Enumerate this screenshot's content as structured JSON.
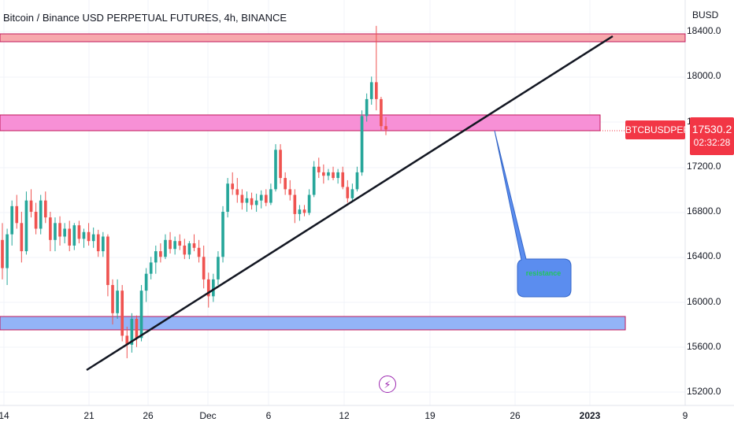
{
  "header": {
    "title": "Bitcoin / Binance USD PERPETUAL FUTURES, 4h, BINANCE",
    "currency": "BUSD"
  },
  "price_tag": {
    "symbol": "BTCBUSDPERP",
    "price": "17530.2",
    "countdown": "02:32:28",
    "color": "#f23645"
  },
  "annotations": {
    "callout_text": "resistance",
    "callout_color": "#5b8def",
    "zone_colors": {
      "top": "#f7a8ad",
      "middle": "#f790d6",
      "bottom": "#93b4f7",
      "border": "#c2185b"
    }
  },
  "icons": {
    "bolt": "⚡"
  },
  "chart_data": {
    "type": "candlestick",
    "title": "Bitcoin / Binance USD PERPETUAL FUTURES, 4h, BINANCE",
    "ylabel": "BUSD",
    "ylim": [
      15200,
      18400
    ],
    "y_ticks": [
      "18400.0",
      "18000.0",
      "17600.0",
      "17200.0",
      "16800.0",
      "16400.0",
      "16000.0",
      "15600.0",
      "15200.0"
    ],
    "x_ticks": [
      "14",
      "21",
      "26",
      "Dec",
      "6",
      "12",
      "19",
      "26",
      "2023",
      "9"
    ],
    "up_color": "#26a69a",
    "down_color": "#ef5350",
    "candles": [
      {
        "o": 16550,
        "h": 16700,
        "l": 16200,
        "c": 16300
      },
      {
        "o": 16300,
        "h": 16650,
        "l": 16150,
        "c": 16600
      },
      {
        "o": 16600,
        "h": 16900,
        "l": 16500,
        "c": 16850
      },
      {
        "o": 16850,
        "h": 16950,
        "l": 16650,
        "c": 16700
      },
      {
        "o": 16700,
        "h": 16800,
        "l": 16350,
        "c": 16450
      },
      {
        "o": 16450,
        "h": 16980,
        "l": 16420,
        "c": 16900
      },
      {
        "o": 16900,
        "h": 17000,
        "l": 16750,
        "c": 16800
      },
      {
        "o": 16800,
        "h": 16880,
        "l": 16600,
        "c": 16650
      },
      {
        "o": 16650,
        "h": 16950,
        "l": 16600,
        "c": 16900
      },
      {
        "o": 16900,
        "h": 16980,
        "l": 16700,
        "c": 16750
      },
      {
        "o": 16750,
        "h": 16800,
        "l": 16450,
        "c": 16550
      },
      {
        "o": 16550,
        "h": 16750,
        "l": 16450,
        "c": 16700
      },
      {
        "o": 16700,
        "h": 16760,
        "l": 16500,
        "c": 16580
      },
      {
        "o": 16580,
        "h": 16700,
        "l": 16520,
        "c": 16650
      },
      {
        "o": 16650,
        "h": 16720,
        "l": 16450,
        "c": 16500
      },
      {
        "o": 16500,
        "h": 16700,
        "l": 16460,
        "c": 16680
      },
      {
        "o": 16680,
        "h": 16720,
        "l": 16520,
        "c": 16560
      },
      {
        "o": 16560,
        "h": 16650,
        "l": 16480,
        "c": 16620
      },
      {
        "o": 16620,
        "h": 16700,
        "l": 16500,
        "c": 16540
      },
      {
        "o": 16540,
        "h": 16660,
        "l": 16480,
        "c": 16600
      },
      {
        "o": 16600,
        "h": 16640,
        "l": 16400,
        "c": 16450
      },
      {
        "o": 16450,
        "h": 16620,
        "l": 16400,
        "c": 16580
      },
      {
        "o": 16580,
        "h": 16600,
        "l": 16050,
        "c": 16150
      },
      {
        "o": 16150,
        "h": 16200,
        "l": 15800,
        "c": 15900
      },
      {
        "o": 15900,
        "h": 16200,
        "l": 15850,
        "c": 16100
      },
      {
        "o": 16100,
        "h": 16150,
        "l": 15650,
        "c": 15700
      },
      {
        "o": 15700,
        "h": 15780,
        "l": 15500,
        "c": 15620
      },
      {
        "o": 15620,
        "h": 15900,
        "l": 15550,
        "c": 15850
      },
      {
        "o": 15850,
        "h": 15880,
        "l": 15600,
        "c": 15680
      },
      {
        "o": 15680,
        "h": 16150,
        "l": 15650,
        "c": 16100
      },
      {
        "o": 16100,
        "h": 16300,
        "l": 16000,
        "c": 16250
      },
      {
        "o": 16250,
        "h": 16400,
        "l": 16200,
        "c": 16350
      },
      {
        "o": 16350,
        "h": 16500,
        "l": 16250,
        "c": 16450
      },
      {
        "o": 16450,
        "h": 16520,
        "l": 16350,
        "c": 16400
      },
      {
        "o": 16400,
        "h": 16600,
        "l": 16380,
        "c": 16550
      },
      {
        "o": 16550,
        "h": 16620,
        "l": 16430,
        "c": 16470
      },
      {
        "o": 16470,
        "h": 16580,
        "l": 16420,
        "c": 16540
      },
      {
        "o": 16540,
        "h": 16600,
        "l": 16460,
        "c": 16500
      },
      {
        "o": 16500,
        "h": 16560,
        "l": 16380,
        "c": 16420
      },
      {
        "o": 16420,
        "h": 16540,
        "l": 16380,
        "c": 16520
      },
      {
        "o": 16520,
        "h": 16600,
        "l": 16450,
        "c": 16480
      },
      {
        "o": 16480,
        "h": 16550,
        "l": 16350,
        "c": 16400
      },
      {
        "o": 16400,
        "h": 16500,
        "l": 16120,
        "c": 16200
      },
      {
        "o": 16200,
        "h": 16260,
        "l": 15950,
        "c": 16050
      },
      {
        "o": 16050,
        "h": 16250,
        "l": 16000,
        "c": 16200
      },
      {
        "o": 16200,
        "h": 16450,
        "l": 16150,
        "c": 16400
      },
      {
        "o": 16400,
        "h": 16850,
        "l": 16350,
        "c": 16800
      },
      {
        "o": 16800,
        "h": 17100,
        "l": 16750,
        "c": 17050
      },
      {
        "o": 17050,
        "h": 17150,
        "l": 16950,
        "c": 17000
      },
      {
        "o": 17000,
        "h": 17100,
        "l": 16880,
        "c": 16950
      },
      {
        "o": 16950,
        "h": 17000,
        "l": 16820,
        "c": 16880
      },
      {
        "o": 16880,
        "h": 16980,
        "l": 16800,
        "c": 16920
      },
      {
        "o": 16920,
        "h": 16970,
        "l": 16820,
        "c": 16860
      },
      {
        "o": 16860,
        "h": 16960,
        "l": 16800,
        "c": 16900
      },
      {
        "o": 16900,
        "h": 16990,
        "l": 16830,
        "c": 16950
      },
      {
        "o": 16950,
        "h": 17000,
        "l": 16850,
        "c": 16880
      },
      {
        "o": 16880,
        "h": 17050,
        "l": 16860,
        "c": 17000
      },
      {
        "o": 17000,
        "h": 17400,
        "l": 16980,
        "c": 17350
      },
      {
        "o": 17350,
        "h": 17400,
        "l": 17050,
        "c": 17100
      },
      {
        "o": 17100,
        "h": 17150,
        "l": 16950,
        "c": 17000
      },
      {
        "o": 17000,
        "h": 17080,
        "l": 16900,
        "c": 16950
      },
      {
        "o": 16950,
        "h": 17000,
        "l": 16700,
        "c": 16780
      },
      {
        "o": 16780,
        "h": 16860,
        "l": 16720,
        "c": 16820
      },
      {
        "o": 16820,
        "h": 16860,
        "l": 16760,
        "c": 16790
      },
      {
        "o": 16790,
        "h": 17000,
        "l": 16770,
        "c": 16950
      },
      {
        "o": 16950,
        "h": 17250,
        "l": 16930,
        "c": 17200
      },
      {
        "o": 17200,
        "h": 17280,
        "l": 17100,
        "c": 17150
      },
      {
        "o": 17150,
        "h": 17220,
        "l": 17050,
        "c": 17120
      },
      {
        "o": 17120,
        "h": 17180,
        "l": 17080,
        "c": 17150
      },
      {
        "o": 17150,
        "h": 17200,
        "l": 17080,
        "c": 17100
      },
      {
        "o": 17100,
        "h": 17180,
        "l": 17050,
        "c": 17150
      },
      {
        "o": 17150,
        "h": 17200,
        "l": 17000,
        "c": 17020
      },
      {
        "o": 17020,
        "h": 17080,
        "l": 16880,
        "c": 16920
      },
      {
        "o": 16920,
        "h": 17050,
        "l": 16900,
        "c": 17000
      },
      {
        "o": 17000,
        "h": 17200,
        "l": 16980,
        "c": 17150
      },
      {
        "o": 17150,
        "h": 17700,
        "l": 17120,
        "c": 17650
      },
      {
        "o": 17650,
        "h": 17850,
        "l": 17600,
        "c": 17800
      },
      {
        "o": 17800,
        "h": 18000,
        "l": 17750,
        "c": 17950
      },
      {
        "o": 17950,
        "h": 18450,
        "l": 17700,
        "c": 17800
      },
      {
        "o": 17800,
        "h": 17820,
        "l": 17520,
        "c": 17560
      },
      {
        "o": 17560,
        "h": 17640,
        "l": 17480,
        "c": 17530
      }
    ]
  }
}
